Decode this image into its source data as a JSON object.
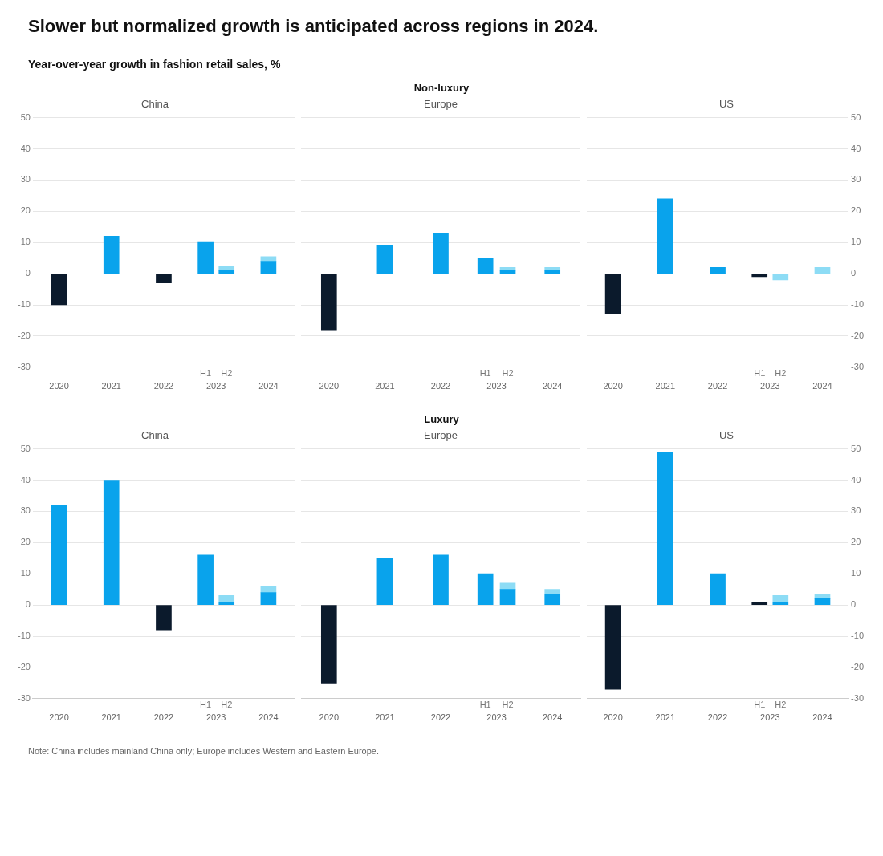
{
  "chart_data": [
    {
      "type": "other",
      "title": "Slower but normalized growth is anticipated across regions in 2024.",
      "subtitle": "Year-over-year growth in fashion retail sales, %"
    },
    {
      "type": "other",
      "title": "Non-luxury"
    },
    {
      "type": "bar",
      "title": "China",
      "x": [
        2020,
        2021,
        2022,
        2022.8,
        2023.2,
        2024
      ],
      "xlim": [
        2019.5,
        2024.5
      ],
      "xticks": [
        2020,
        2021,
        2022,
        2023,
        2024
      ],
      "ylim": [
        -30,
        50
      ],
      "yticks": [
        -30,
        -20,
        -10,
        0,
        10,
        20,
        30,
        40,
        50
      ],
      "grid": "y",
      "stacked": true,
      "series": [
        {
          "values": [
            -10,
            12,
            -3,
            10,
            1,
            4
          ],
          "colors": [
            "#0b1a2c",
            "#09a3ec",
            "#0b1a2c",
            "#09a3ec",
            "#09a3ec",
            "#09a3ec"
          ]
        },
        {
          "values": [
            null,
            null,
            null,
            null,
            1.5,
            1.5
          ],
          "color": "#8ddcf5"
        }
      ],
      "annotations": [
        "H1",
        "H2"
      ]
    },
    {
      "type": "bar",
      "title": "Europe",
      "x": [
        2020,
        2021,
        2022,
        2022.8,
        2023.2,
        2024
      ],
      "xlim": [
        2019.5,
        2024.5
      ],
      "xticks": [
        2020,
        2021,
        2022,
        2023,
        2024
      ],
      "ylim": [
        -30,
        50
      ],
      "yticks": [
        -30,
        -20,
        -10,
        0,
        10,
        20,
        30,
        40,
        50
      ],
      "grid": "y",
      "stacked": true,
      "tick_labels": "x",
      "series": [
        {
          "values": [
            -18,
            9,
            13,
            5,
            1,
            1
          ],
          "colors": [
            "#0b1a2c",
            "#09a3ec",
            "#09a3ec",
            "#09a3ec",
            "#09a3ec",
            "#09a3ec"
          ]
        },
        {
          "values": [
            null,
            null,
            null,
            null,
            1,
            1
          ],
          "color": "#8ddcf5"
        }
      ],
      "annotations": [
        "H1",
        "H2"
      ]
    },
    {
      "type": "bar",
      "title": "US",
      "x": [
        2020,
        2021,
        2022,
        2022.8,
        2023.2,
        2024
      ],
      "xlim": [
        2019.5,
        2024.5
      ],
      "xticks": [
        2020,
        2021,
        2022,
        2023,
        2024
      ],
      "y2lim": [
        -30,
        50
      ],
      "y2ticks": [
        -30,
        -20,
        -10,
        0,
        10,
        20,
        30,
        40,
        50
      ],
      "grid": "y",
      "stacked": true,
      "series": [
        {
          "axis": "y2",
          "values": [
            -13,
            24,
            2,
            -1,
            null,
            null
          ],
          "colors": [
            "#0b1a2c",
            "#09a3ec",
            "#09a3ec",
            "#0b1a2c",
            "#09a3ec",
            "#09a3ec"
          ]
        },
        {
          "axis": "y2",
          "values": [
            null,
            null,
            null,
            null,
            -2,
            2
          ],
          "color": "#8ddcf5"
        }
      ],
      "annotations": [
        "H1",
        "H2"
      ]
    },
    {
      "type": "other",
      "title": "Luxury"
    },
    {
      "type": "bar",
      "title": "China",
      "x": [
        2020,
        2021,
        2022,
        2022.8,
        2023.2,
        2024
      ],
      "xlim": [
        2019.5,
        2024.5
      ],
      "xticks": [
        2020,
        2021,
        2022,
        2023,
        2024
      ],
      "ylim": [
        -30,
        50
      ],
      "yticks": [
        -30,
        -20,
        -10,
        0,
        10,
        20,
        30,
        40,
        50
      ],
      "grid": "y",
      "stacked": true,
      "series": [
        {
          "values": [
            32,
            40,
            -8,
            16,
            1,
            4
          ],
          "colors": [
            "#09a3ec",
            "#09a3ec",
            "#0b1a2c",
            "#09a3ec",
            "#09a3ec",
            "#09a3ec"
          ]
        },
        {
          "values": [
            null,
            null,
            null,
            null,
            2,
            2
          ],
          "color": "#8ddcf5"
        }
      ],
      "annotations": [
        "H1",
        "H2"
      ]
    },
    {
      "type": "bar",
      "title": "Europe",
      "x": [
        2020,
        2021,
        2022,
        2022.8,
        2023.2,
        2024
      ],
      "xlim": [
        2019.5,
        2024.5
      ],
      "xticks": [
        2020,
        2021,
        2022,
        2023,
        2024
      ],
      "ylim": [
        -30,
        50
      ],
      "yticks": [
        -30,
        -20,
        -10,
        0,
        10,
        20,
        30,
        40,
        50
      ],
      "grid": "y",
      "stacked": true,
      "tick_labels": "x",
      "series": [
        {
          "values": [
            -25,
            15,
            16,
            10,
            5,
            3.5
          ],
          "colors": [
            "#0b1a2c",
            "#09a3ec",
            "#09a3ec",
            "#09a3ec",
            "#09a3ec",
            "#09a3ec"
          ]
        },
        {
          "values": [
            null,
            null,
            null,
            null,
            2,
            1.5
          ],
          "color": "#8ddcf5"
        }
      ],
      "annotations": [
        "H1",
        "H2"
      ]
    },
    {
      "type": "bar",
      "title": "US",
      "x": [
        2020,
        2021,
        2022,
        2022.8,
        2023.2,
        2024
      ],
      "xlim": [
        2019.5,
        2024.5
      ],
      "xticks": [
        2020,
        2021,
        2022,
        2023,
        2024
      ],
      "y2lim": [
        -30,
        50
      ],
      "y2ticks": [
        -30,
        -20,
        -10,
        0,
        10,
        20,
        30,
        40,
        50
      ],
      "grid": "y",
      "stacked": true,
      "series": [
        {
          "axis": "y2",
          "values": [
            -27,
            49,
            10,
            1,
            1,
            2
          ],
          "colors": [
            "#0b1a2c",
            "#09a3ec",
            "#09a3ec",
            "#0b1a2c",
            "#09a3ec",
            "#09a3ec"
          ]
        },
        {
          "axis": "y2",
          "values": [
            null,
            null,
            null,
            null,
            2,
            1.5
          ],
          "color": "#8ddcf5"
        }
      ],
      "annotations": [
        "H1",
        "H2"
      ]
    },
    {
      "type": "other",
      "annotations": [
        "Note: China includes mainland China only; Europe includes Western and Eastern Europe."
      ]
    }
  ]
}
